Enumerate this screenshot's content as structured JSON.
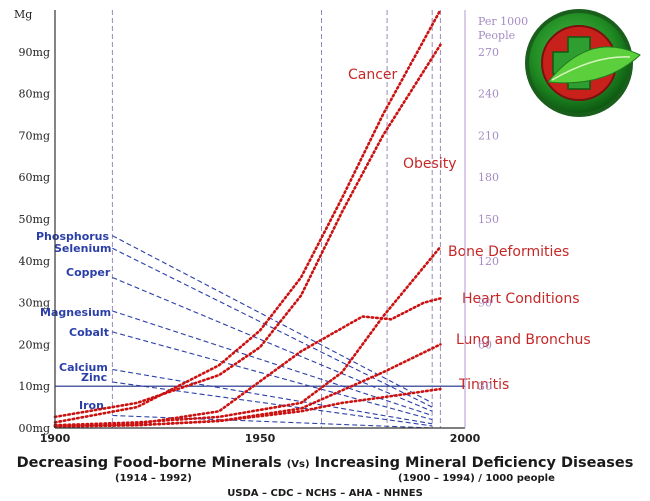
{
  "chart_data": {
    "type": "line",
    "title_left": "Decreasing Food-borne Minerals",
    "title_vs": "(Vs)",
    "title_right": "Increasing Mineral Deficiency Diseases",
    "subtitle_left": "(1914 – 1992)",
    "subtitle_right": "(1900 – 1994) / 1000 people",
    "source": "USDA – CDC – NCHS – AHA - NHNES",
    "left_axis_unit": "Mg",
    "right_axis_unit_line1": "Per 1000",
    "right_axis_unit_line2": "People",
    "x_range": [
      1900,
      2000
    ],
    "x_ticks": [
      1900,
      1950,
      2000
    ],
    "left_range": [
      0,
      100
    ],
    "left_ticks": [
      {
        "value": 0,
        "label": "00mg"
      },
      {
        "value": 10,
        "label": "10mg"
      },
      {
        "value": 20,
        "label": "20mg"
      },
      {
        "value": 30,
        "label": "30mg"
      },
      {
        "value": 40,
        "label": "40mg"
      },
      {
        "value": 50,
        "label": "50mg"
      },
      {
        "value": 60,
        "label": "60mg"
      },
      {
        "value": 70,
        "label": "70mg"
      },
      {
        "value": 80,
        "label": "80mg"
      },
      {
        "value": 90,
        "label": "90mg"
      }
    ],
    "right_range": [
      0,
      300
    ],
    "right_ticks": [
      {
        "value": 30,
        "label": "30"
      },
      {
        "value": 60,
        "label": "60"
      },
      {
        "value": 90,
        "label": "90"
      },
      {
        "value": 120,
        "label": "120"
      },
      {
        "value": 150,
        "label": "150"
      },
      {
        "value": 180,
        "label": "180"
      },
      {
        "value": 210,
        "label": "210"
      },
      {
        "value": 240,
        "label": "240"
      },
      {
        "value": 270,
        "label": "270"
      }
    ],
    "vertical_gridlines_years": [
      1914,
      1965,
      1981,
      1992,
      1994
    ],
    "horizontal_gridline_mg": 10,
    "mineral_series": [
      {
        "name": "Phosphorus",
        "points": [
          [
            1914,
            46
          ],
          [
            1992,
            6
          ]
        ]
      },
      {
        "name": "Selenium",
        "points": [
          [
            1914,
            43
          ],
          [
            1992,
            5
          ]
        ]
      },
      {
        "name": "Copper",
        "points": [
          [
            1914,
            36
          ],
          [
            1992,
            4
          ]
        ]
      },
      {
        "name": "Magnesium",
        "points": [
          [
            1914,
            28
          ],
          [
            1992,
            3
          ]
        ]
      },
      {
        "name": "Cobalt",
        "points": [
          [
            1914,
            23
          ],
          [
            1992,
            2
          ]
        ]
      },
      {
        "name": "Calcium",
        "points": [
          [
            1914,
            14
          ],
          [
            1992,
            1
          ]
        ]
      },
      {
        "name": "Zinc",
        "points": [
          [
            1914,
            11
          ],
          [
            1992,
            0.5
          ]
        ]
      },
      {
        "name": "Iron",
        "points": [
          [
            1914,
            3
          ],
          [
            1992,
            0
          ]
        ]
      }
    ],
    "disease_series": [
      {
        "name": "Cancer",
        "points": [
          [
            1900,
            4
          ],
          [
            1920,
            15
          ],
          [
            1940,
            45
          ],
          [
            1950,
            70
          ],
          [
            1960,
            108
          ],
          [
            1970,
            165
          ],
          [
            1980,
            225
          ],
          [
            1994,
            300
          ]
        ]
      },
      {
        "name": "Obesity",
        "points": [
          [
            1900,
            8
          ],
          [
            1920,
            18
          ],
          [
            1940,
            38
          ],
          [
            1950,
            58
          ],
          [
            1960,
            95
          ],
          [
            1970,
            155
          ],
          [
            1980,
            210
          ],
          [
            1994,
            275
          ]
        ]
      },
      {
        "name": "Bone Deformities",
        "points": [
          [
            1900,
            2
          ],
          [
            1920,
            4
          ],
          [
            1940,
            8
          ],
          [
            1960,
            18
          ],
          [
            1970,
            40
          ],
          [
            1980,
            80
          ],
          [
            1994,
            130
          ]
        ]
      },
      {
        "name": "Heart Conditions",
        "points": [
          [
            1900,
            1
          ],
          [
            1920,
            3
          ],
          [
            1940,
            12
          ],
          [
            1960,
            55
          ],
          [
            1975,
            80
          ],
          [
            1982,
            78
          ],
          [
            1990,
            90
          ],
          [
            1994,
            93
          ]
        ]
      },
      {
        "name": "Lung and Bronchus",
        "points": [
          [
            1900,
            1
          ],
          [
            1920,
            2
          ],
          [
            1940,
            5
          ],
          [
            1960,
            14
          ],
          [
            1970,
            27
          ],
          [
            1980,
            40
          ],
          [
            1994,
            60
          ]
        ]
      },
      {
        "name": "Tinnitis",
        "points": [
          [
            1900,
            2
          ],
          [
            1920,
            2
          ],
          [
            1940,
            5
          ],
          [
            1960,
            12
          ],
          [
            1970,
            18
          ],
          [
            1980,
            22
          ],
          [
            1994,
            28
          ]
        ]
      }
    ],
    "colors": {
      "minerals": "#2b3fa8",
      "diseases": "#cc1111",
      "grid": "#9a8ab8",
      "logo_green": "#1f8a22",
      "logo_red": "#c8211b"
    }
  }
}
